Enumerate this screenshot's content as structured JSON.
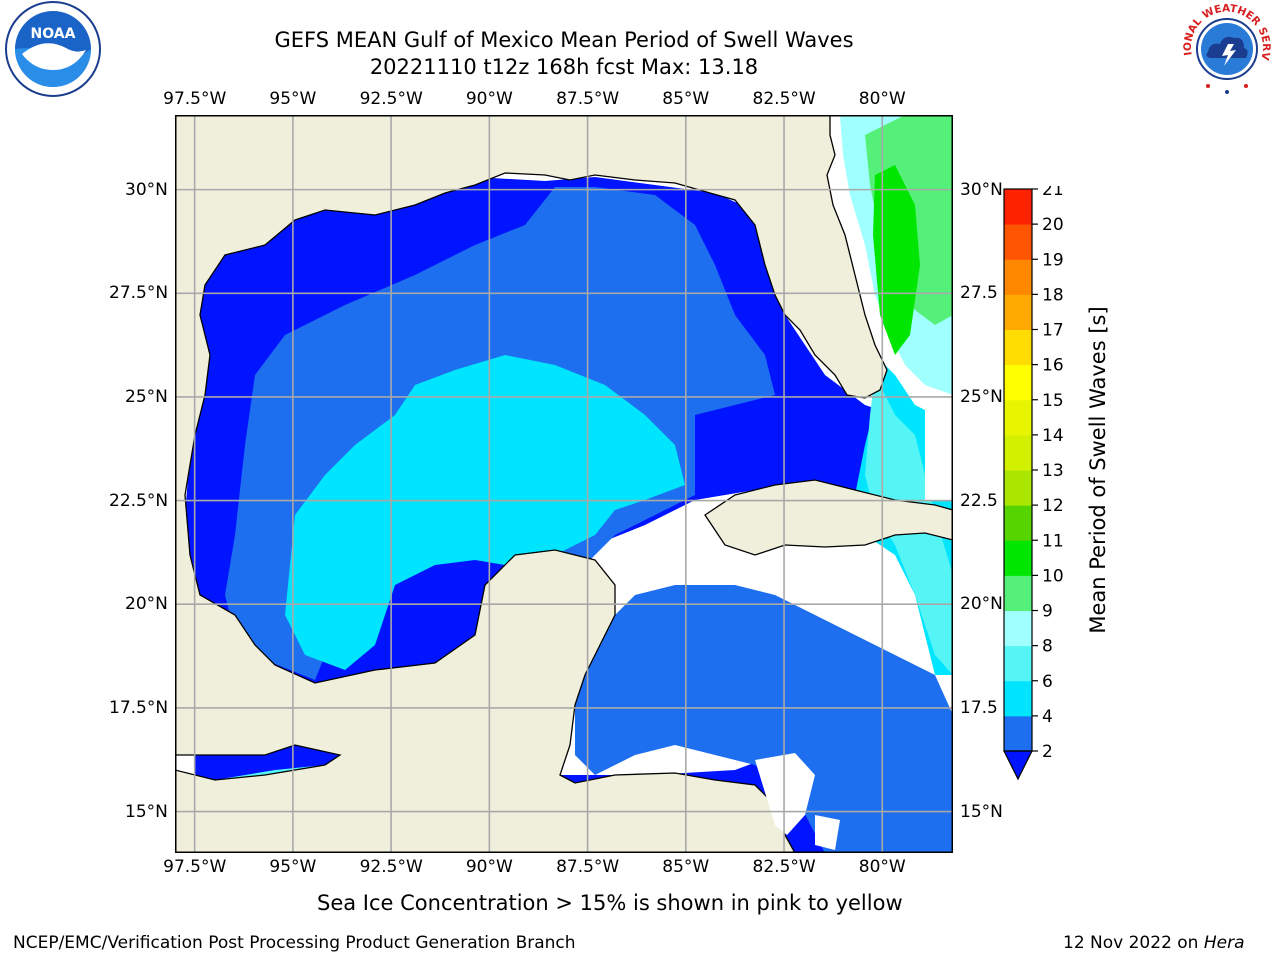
{
  "title_line1": "GEFS MEAN Gulf of Mexico Mean Period of Swell Waves",
  "title_line2": "20221110 t12z 168h fcst   Max: 13.18",
  "map": {
    "lon_labels": [
      "97.5°W",
      "95°W",
      "92.5°W",
      "90°W",
      "87.5°W",
      "85°W",
      "82.5°W",
      "80°W"
    ],
    "lon_values": [
      -97.5,
      -95,
      -92.5,
      -90,
      -87.5,
      -85,
      -82.5,
      -80
    ],
    "lat_labels": [
      "30°N",
      "27.5°N",
      "25°N",
      "22.5°N",
      "20°N",
      "17.5°N",
      "15°N"
    ],
    "lat_values": [
      30,
      27.5,
      25,
      22.5,
      20,
      17.5,
      15
    ],
    "lat_right_labels": [
      "30°N",
      "27.5",
      "25°N",
      "22.5",
      "20°N",
      "17.5",
      "15°N"
    ],
    "extent": {
      "lon_min": -98,
      "lon_max": -78.2,
      "lat_min": 14,
      "lat_max": 31.8
    }
  },
  "colorbar": {
    "label": "Mean Period of Swell Waves [s]",
    "ticks": [
      "2",
      "4",
      "6",
      "8",
      "9",
      "10",
      "11",
      "12",
      "13",
      "14",
      "15",
      "16",
      "17",
      "18",
      "19",
      "20",
      "21"
    ],
    "levels": [
      2,
      4,
      6,
      8,
      9,
      10,
      11,
      12,
      13,
      14,
      15,
      16,
      17,
      18,
      19,
      20,
      21
    ],
    "colors": [
      "#1e6ff0",
      "#00e5ff",
      "#56f5f5",
      "#a0ffff",
      "#55f07a",
      "#00e600",
      "#55d400",
      "#aae600",
      "#d2f000",
      "#e8f500",
      "#ffff00",
      "#ffdd00",
      "#ffaa00",
      "#ff8800",
      "#ff5500",
      "#ff2200"
    ],
    "under_color": "#0014ff"
  },
  "colors": {
    "land": "#efefdc",
    "ocean_deep": "#0014ff",
    "grid": "#a9a9a9"
  },
  "caption": "Sea Ice Concentration > 15% is shown in pink to yellow",
  "footer_left": "NCEP/EMC/Verification Post Processing Product Generation Branch",
  "footer_right_date": "12 Nov 2022 on ",
  "footer_right_host": "Hera",
  "logos": {
    "noaa_text": "NOAA",
    "nws_text": "NATIONAL WEATHER SERVICE"
  }
}
